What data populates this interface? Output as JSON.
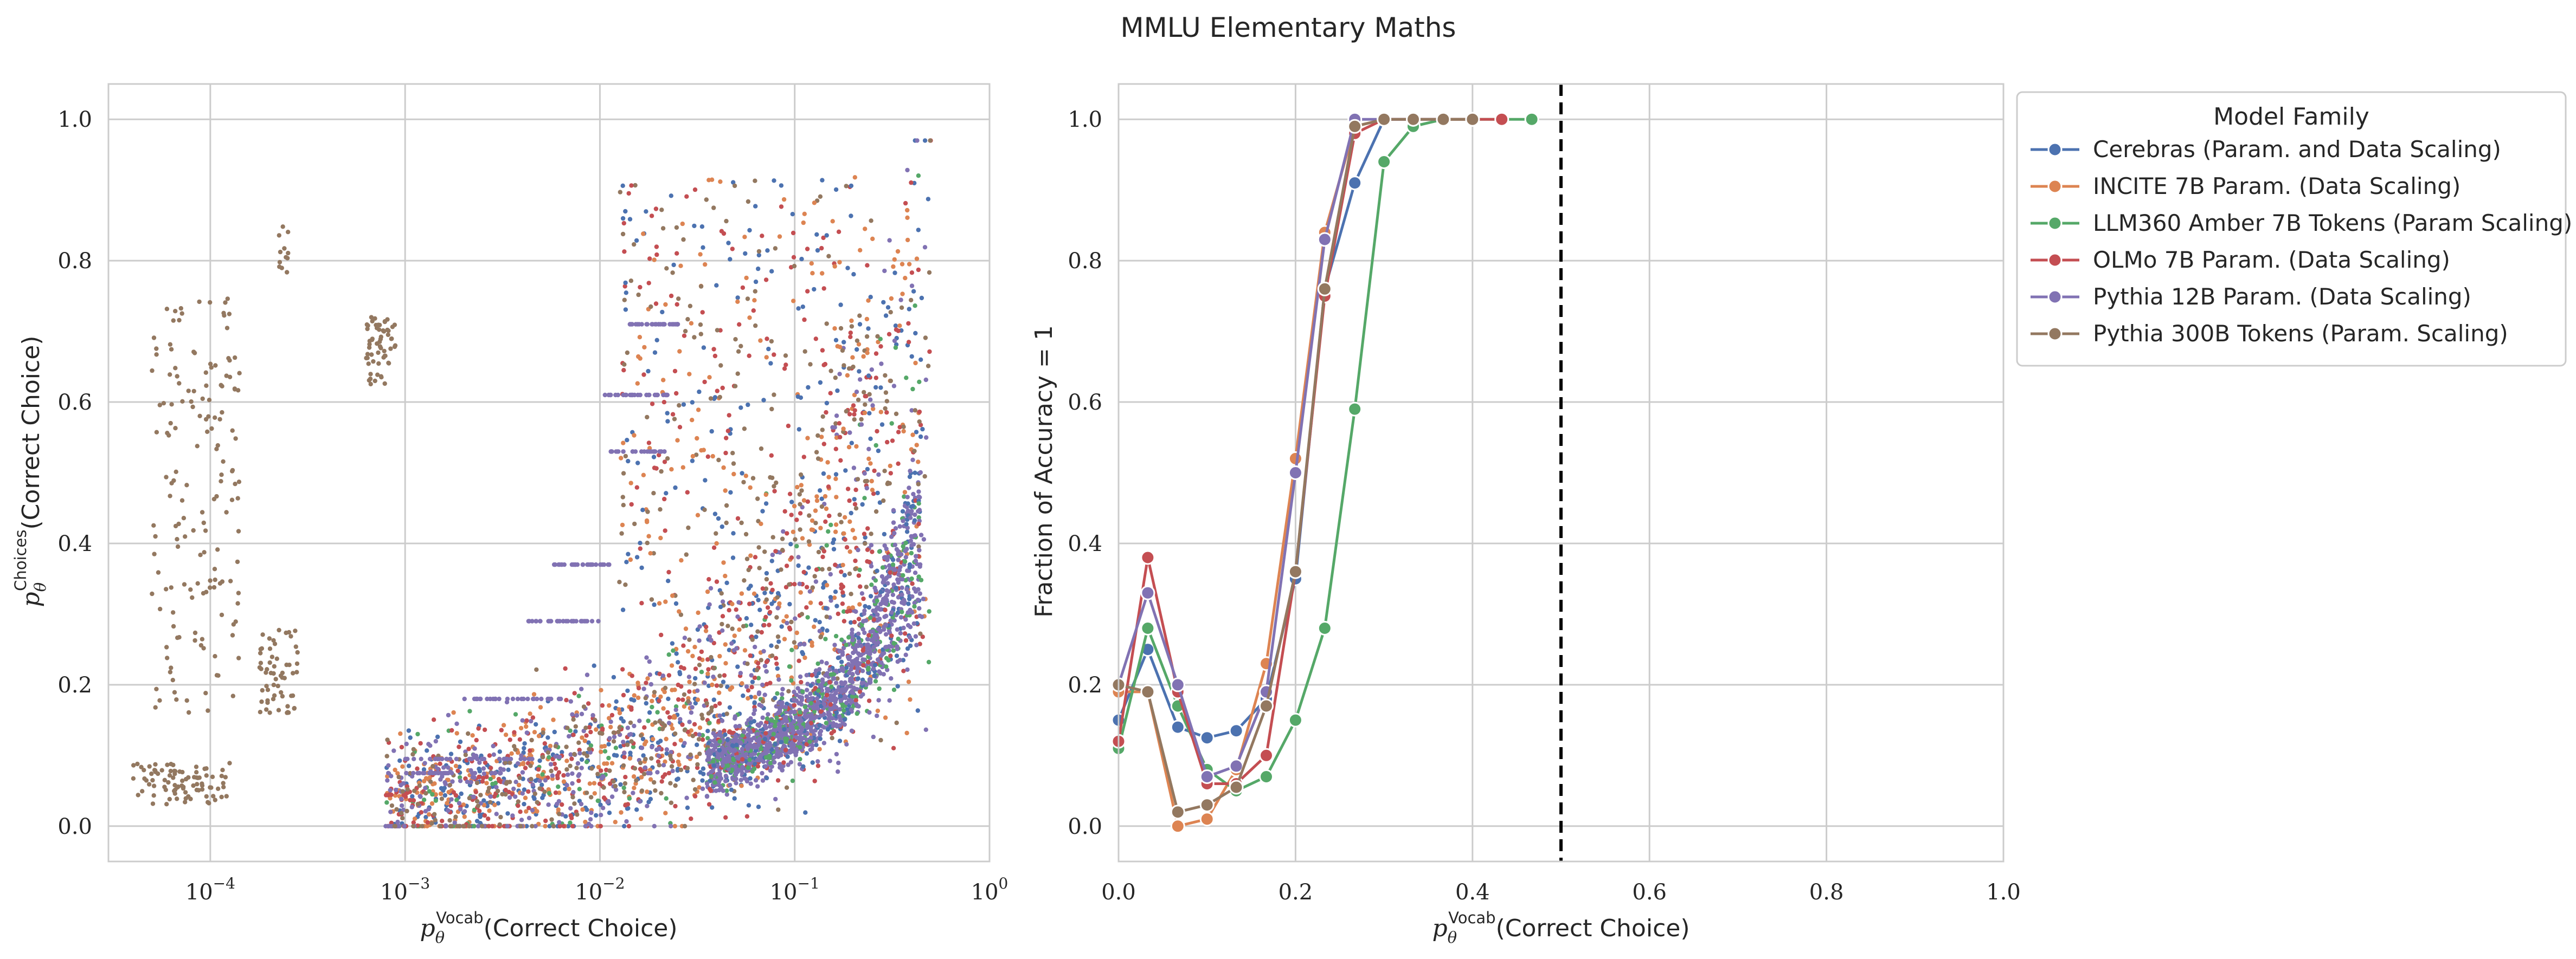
{
  "figure": {
    "title": "MMLU Elementary Maths"
  },
  "chart_data": [
    {
      "type": "scatter",
      "panel": "left",
      "xlabel_main": "p",
      "xlabel_sub": "θ",
      "xlabel_sup": "Vocab",
      "xlabel_rest": "(Correct Choice)",
      "ylabel_main": "p",
      "ylabel_sub": "θ",
      "ylabel_sup": "Choices",
      "ylabel_rest": "(Correct Choice)",
      "xscale": "log",
      "xlim": [
        3e-05,
        1.0
      ],
      "ylim": [
        -0.05,
        1.05
      ],
      "xticks": [
        {
          "base": "10",
          "exp": "−4",
          "value": 0.0001
        },
        {
          "base": "10",
          "exp": "−3",
          "value": 0.001
        },
        {
          "base": "10",
          "exp": "−2",
          "value": 0.01
        },
        {
          "base": "10",
          "exp": "−1",
          "value": 0.1
        },
        {
          "base": "10",
          "exp": "0",
          "value": 1.0
        }
      ],
      "yticks": [
        "0.0",
        "0.2",
        "0.4",
        "0.6",
        "0.8",
        "1.0"
      ],
      "grid": true,
      "note": "dense scatter of per-question points for each model family; colors match legend",
      "series": [
        {
          "name": "Cerebras (Param. and Data Scaling)",
          "color": "#4c72b0"
        },
        {
          "name": "INCITE 7B Param. (Data Scaling)",
          "color": "#dd8452"
        },
        {
          "name": "LLM360 Amber 7B Tokens (Param Scaling)",
          "color": "#55a868"
        },
        {
          "name": "OLMo 7B Param. (Data Scaling)",
          "color": "#c44e52"
        },
        {
          "name": "Pythia 12B Param. (Data Scaling)",
          "color": "#8172b3"
        },
        {
          "name": "Pythia 300B Tokens (Param. Scaling)",
          "color": "#937860"
        }
      ]
    },
    {
      "type": "line",
      "panel": "right",
      "xlabel_main": "p",
      "xlabel_sub": "θ",
      "xlabel_sup": "Vocab",
      "xlabel_rest": "(Correct Choice)",
      "ylabel": "Fraction of Accuracy = 1",
      "xlim": [
        0.0,
        1.0
      ],
      "ylim": [
        -0.05,
        1.05
      ],
      "xticks": [
        "0.0",
        "0.2",
        "0.4",
        "0.6",
        "0.8",
        "1.0"
      ],
      "yticks": [
        "0.0",
        "0.2",
        "0.4",
        "0.6",
        "0.8",
        "1.0"
      ],
      "grid": true,
      "vline": {
        "x": 0.5,
        "style": "dashed",
        "color": "#000000"
      },
      "legend": {
        "title": "Model Family",
        "placement": "outside upper right"
      },
      "series": [
        {
          "name": "Cerebras (Param. and Data Scaling)",
          "color": "#4c72b0",
          "x": [
            0.0,
            0.033,
            0.067,
            0.1,
            0.133,
            0.167,
            0.2,
            0.233,
            0.267,
            0.3,
            0.333,
            0.367,
            0.4
          ],
          "y": [
            0.15,
            0.25,
            0.14,
            0.125,
            0.135,
            0.18,
            0.35,
            0.76,
            0.91,
            1.0,
            1.0,
            1.0,
            1.0
          ]
        },
        {
          "name": "INCITE 7B Param. (Data Scaling)",
          "color": "#dd8452",
          "x": [
            0.0,
            0.033,
            0.067,
            0.1,
            0.133,
            0.167,
            0.2,
            0.233,
            0.267,
            0.3,
            0.333,
            0.367,
            0.4
          ],
          "y": [
            0.19,
            0.19,
            0.0,
            0.01,
            0.08,
            0.23,
            0.52,
            0.84,
            0.99,
            1.0,
            1.0,
            1.0,
            1.0
          ]
        },
        {
          "name": "LLM360 Amber 7B Tokens (Param Scaling)",
          "color": "#55a868",
          "x": [
            0.0,
            0.033,
            0.067,
            0.1,
            0.133,
            0.167,
            0.2,
            0.233,
            0.267,
            0.3,
            0.333,
            0.367,
            0.4,
            0.433,
            0.467
          ],
          "y": [
            0.11,
            0.28,
            0.17,
            0.08,
            0.05,
            0.07,
            0.15,
            0.28,
            0.59,
            0.94,
            0.99,
            1.0,
            1.0,
            1.0,
            1.0
          ]
        },
        {
          "name": "OLMo 7B Param. (Data Scaling)",
          "color": "#c44e52",
          "x": [
            0.0,
            0.033,
            0.067,
            0.1,
            0.133,
            0.167,
            0.2,
            0.233,
            0.267,
            0.3,
            0.333,
            0.367,
            0.4,
            0.433
          ],
          "y": [
            0.12,
            0.38,
            0.19,
            0.06,
            0.06,
            0.1,
            0.36,
            0.75,
            0.98,
            1.0,
            1.0,
            1.0,
            1.0,
            1.0
          ]
        },
        {
          "name": "Pythia 12B Param. (Data Scaling)",
          "color": "#8172b3",
          "x": [
            0.0,
            0.033,
            0.067,
            0.1,
            0.133,
            0.167,
            0.2,
            0.233,
            0.267,
            0.3,
            0.333,
            0.367
          ],
          "y": [
            0.2,
            0.33,
            0.2,
            0.07,
            0.085,
            0.19,
            0.5,
            0.83,
            1.0,
            1.0,
            1.0,
            1.0
          ]
        },
        {
          "name": "Pythia 300B Tokens (Param. Scaling)",
          "color": "#937860",
          "x": [
            0.0,
            0.033,
            0.067,
            0.1,
            0.133,
            0.167,
            0.2,
            0.233,
            0.267,
            0.3,
            0.333,
            0.367,
            0.4
          ],
          "y": [
            0.2,
            0.19,
            0.02,
            0.03,
            0.055,
            0.17,
            0.36,
            0.76,
            0.99,
            1.0,
            1.0,
            1.0,
            1.0
          ]
        }
      ]
    }
  ]
}
